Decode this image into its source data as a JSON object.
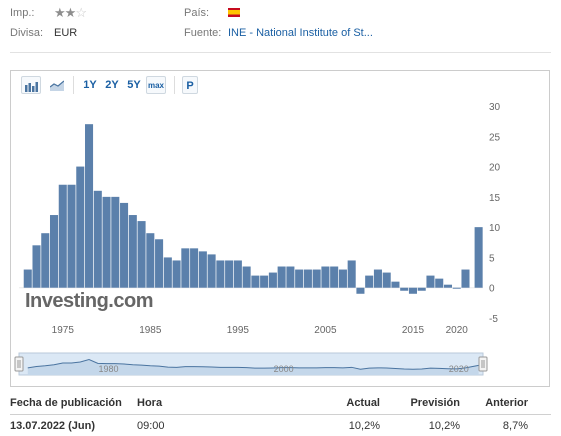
{
  "info": {
    "imp_label": "Imp.:",
    "divisa_label": "Divisa:",
    "divisa_value": "EUR",
    "pais_label": "País:",
    "fuente_label": "Fuente:",
    "fuente_value": "INE - National Institute of St...",
    "stars_filled": 2,
    "stars_total": 3
  },
  "toolbar": {
    "range_1y": "1Y",
    "range_2y": "2Y",
    "range_5y": "5Y",
    "range_max": "max",
    "p_button": "P"
  },
  "colors": {
    "bar_fill": "#5b80ab",
    "link": "#1a5fa3",
    "navigator_fill": "#dbe8f5",
    "navigator_line": "#4a74a0",
    "flag_red": "#c60b1e",
    "flag_yellow": "#ffc400"
  },
  "watermark": "Investing.com",
  "chart_data": {
    "type": "bar",
    "x": [
      1971,
      1972,
      1973,
      1974,
      1975,
      1976,
      1977,
      1978,
      1979,
      1980,
      1981,
      1982,
      1983,
      1984,
      1985,
      1986,
      1987,
      1988,
      1989,
      1990,
      1991,
      1992,
      1993,
      1994,
      1995,
      1996,
      1997,
      1998,
      1999,
      2000,
      2001,
      2002,
      2003,
      2004,
      2005,
      2006,
      2007,
      2008,
      2009,
      2010,
      2011,
      2012,
      2013,
      2014,
      2015,
      2016,
      2017,
      2018,
      2019,
      2020,
      2021,
      2022.5
    ],
    "values": [
      3,
      7,
      9,
      12,
      17,
      17,
      20,
      27,
      16,
      15,
      15,
      14,
      12,
      11,
      9,
      8,
      5,
      4.5,
      6.5,
      6.5,
      6,
      5.5,
      4.5,
      4.5,
      4.5,
      3.5,
      2,
      2,
      2.5,
      3.5,
      3.5,
      3,
      3,
      3,
      3.5,
      3.5,
      3,
      4.5,
      -1,
      2,
      3,
      2.5,
      1,
      -0.5,
      -1,
      -0.5,
      2,
      1.5,
      0.5,
      0,
      3,
      10
    ],
    "x_ticks": [
      1975,
      1985,
      1995,
      2005,
      2015,
      2020
    ],
    "y_ticks": [
      30,
      25,
      20,
      15,
      10,
      5,
      0,
      -5
    ],
    "ylim": [
      -5,
      30
    ],
    "xlim": [
      1970,
      2023
    ],
    "navigator_ticks": [
      1980,
      2000,
      2020
    ]
  },
  "table": {
    "headers": {
      "fecha": "Fecha de publicación",
      "hora": "Hora",
      "actual": "Actual",
      "prevision": "Previsión",
      "anterior": "Anterior"
    },
    "rows": [
      {
        "fecha": "13.07.2022 (Jun)",
        "hora": "09:00",
        "actual": "10,2%",
        "prevision": "10,2%",
        "anterior": "8,7%"
      }
    ]
  }
}
